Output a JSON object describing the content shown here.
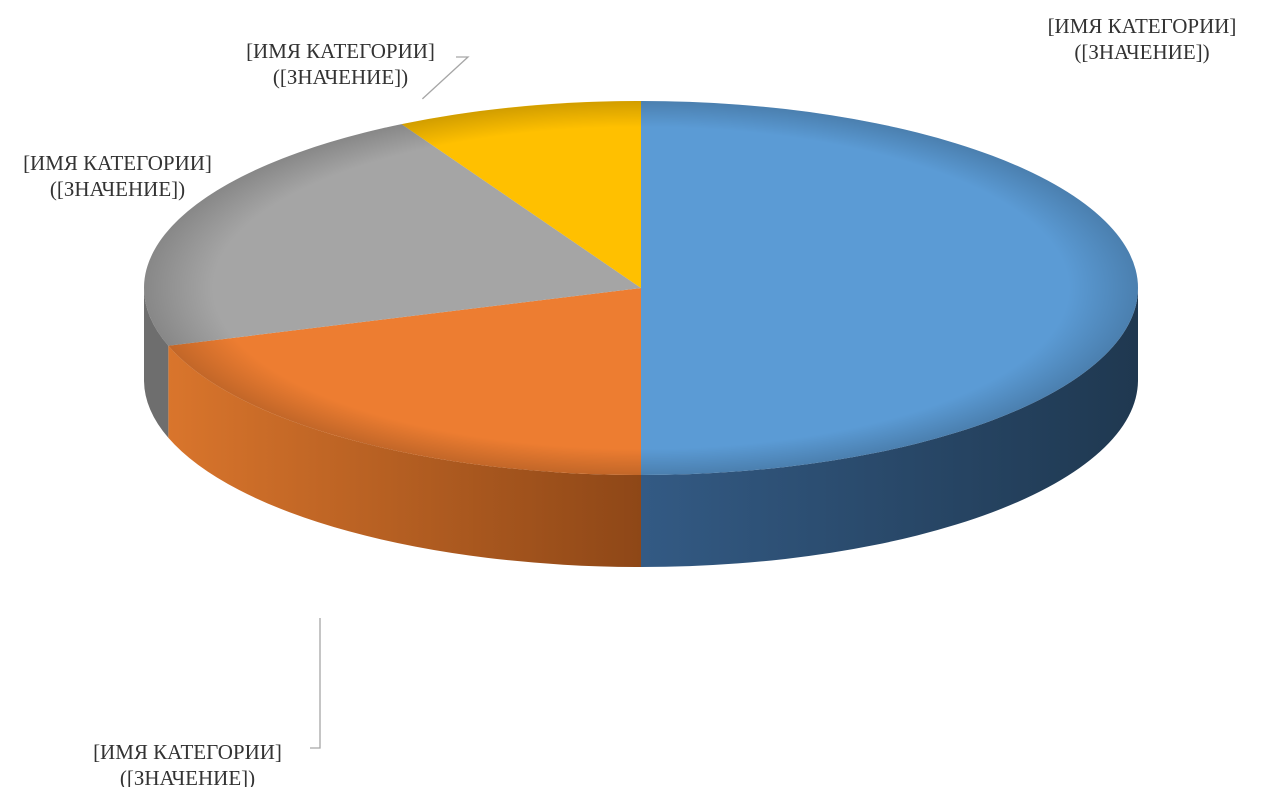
{
  "chart_data": {
    "type": "pie",
    "style": "3d",
    "title": "",
    "slices": [
      {
        "label": "[ИМЯ КАТЕГОРИИ]",
        "value_label": "([ЗНАЧЕНИЕ])",
        "value": 50,
        "color": "#5B9BD5",
        "side_color": "#2A4A6E"
      },
      {
        "label": "[ИМЯ КАТЕГОРИИ]",
        "value_label": "([ЗНАЧЕНИЕ])",
        "value": 20,
        "color": "#ED7D31",
        "side_color": "#A9551E"
      },
      {
        "label": "[ИМЯ КАТЕГОРИИ]",
        "value_label": "([ЗНАЧЕНИЕ])",
        "value": 22,
        "color": "#A5A5A5",
        "side_color": "#6E6E6E"
      },
      {
        "label": "[ИМЯ КАТЕГОРИИ]",
        "value_label": "([ЗНАЧЕНИЕ])",
        "value": 8,
        "color": "#FFC000",
        "side_color": "#B38600"
      }
    ],
    "legend": "none",
    "data_labels": "category name and value, outside with leader lines"
  }
}
